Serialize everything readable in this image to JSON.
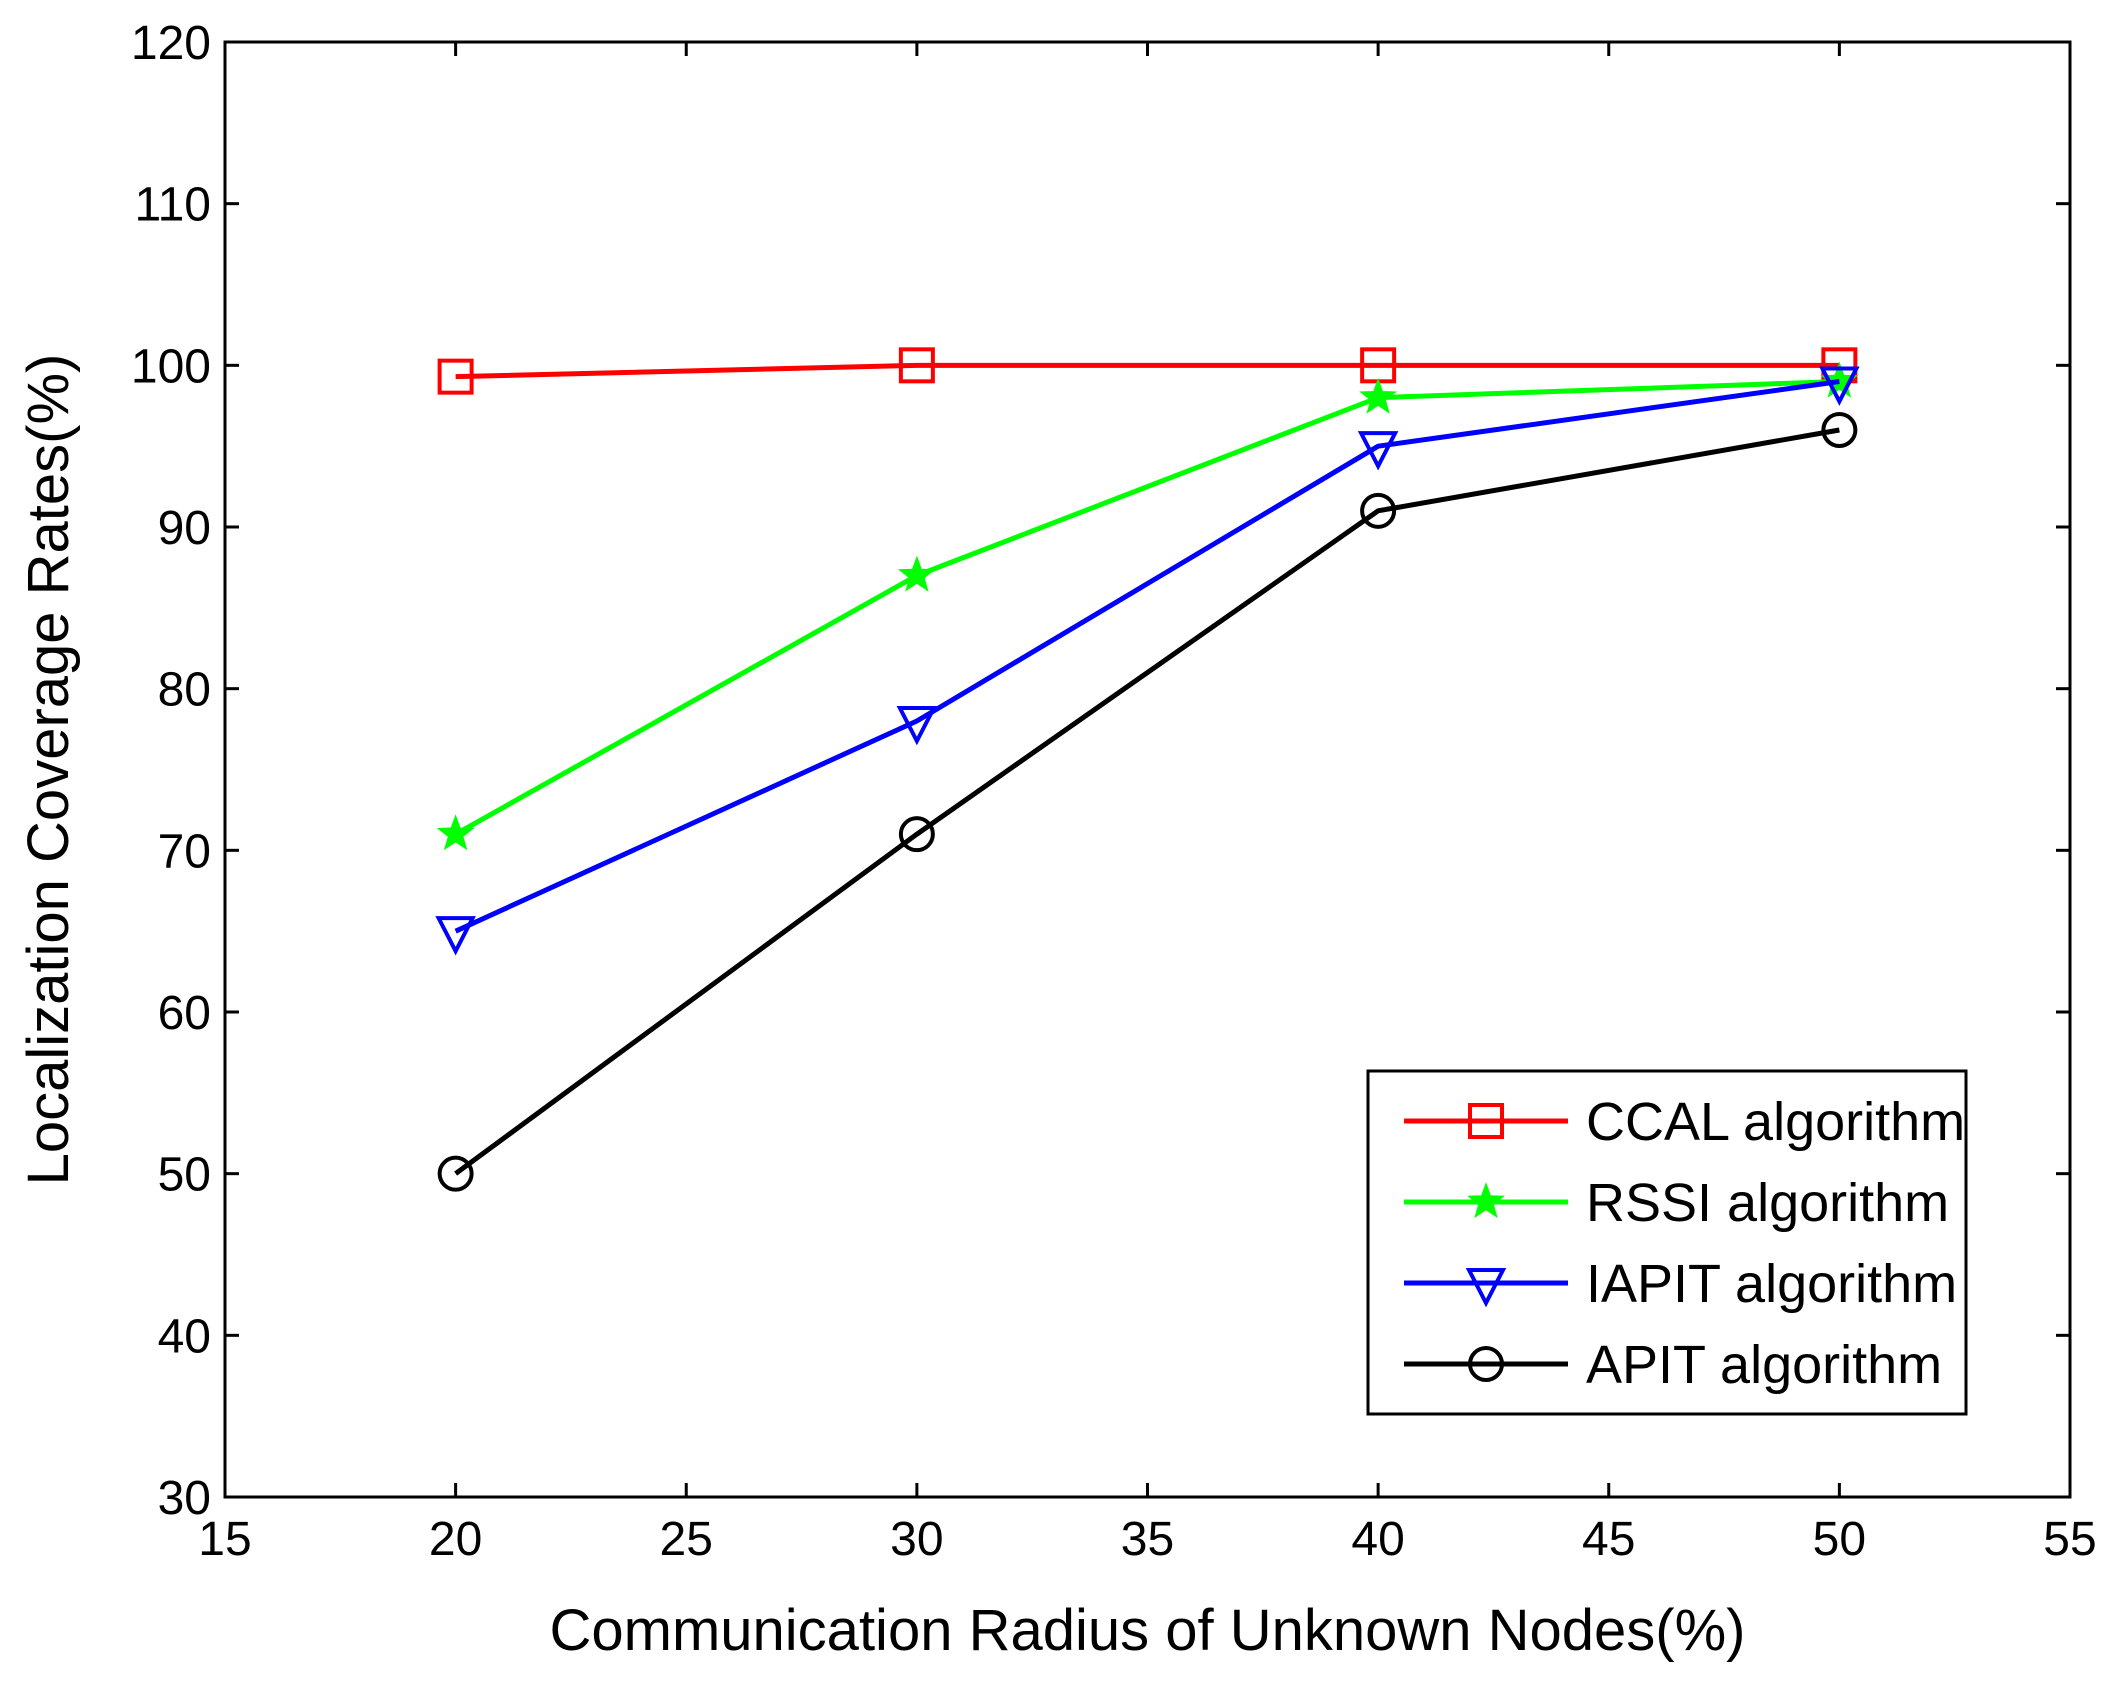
{
  "chart_data": {
    "type": "line",
    "title": "",
    "xlabel": "Communication Radius of Unknown Nodes(%)",
    "ylabel": "Localization Coverage Rates(%)",
    "xlim": [
      15,
      55
    ],
    "ylim": [
      30,
      120
    ],
    "xticks": [
      15,
      20,
      25,
      30,
      35,
      40,
      45,
      50,
      55
    ],
    "yticks": [
      30,
      40,
      50,
      60,
      70,
      80,
      90,
      100,
      110,
      120
    ],
    "grid": false,
    "legend_position": "bottom-right",
    "x": [
      20,
      30,
      40,
      50
    ],
    "series": [
      {
        "name": "CCAL algorithm",
        "color": "#ff0000",
        "marker": "square",
        "values": [
          99.3,
          100,
          100,
          100
        ]
      },
      {
        "name": "RSSI algorithm",
        "color": "#00ff00",
        "marker": "star",
        "values": [
          71,
          87,
          98,
          99
        ]
      },
      {
        "name": "IAPIT algorithm",
        "color": "#0000ff",
        "marker": "triangle-down",
        "values": [
          65,
          78,
          95,
          99
        ]
      },
      {
        "name": "APIT algorithm",
        "color": "#000000",
        "marker": "circle",
        "values": [
          50,
          71,
          91,
          96
        ]
      }
    ]
  }
}
